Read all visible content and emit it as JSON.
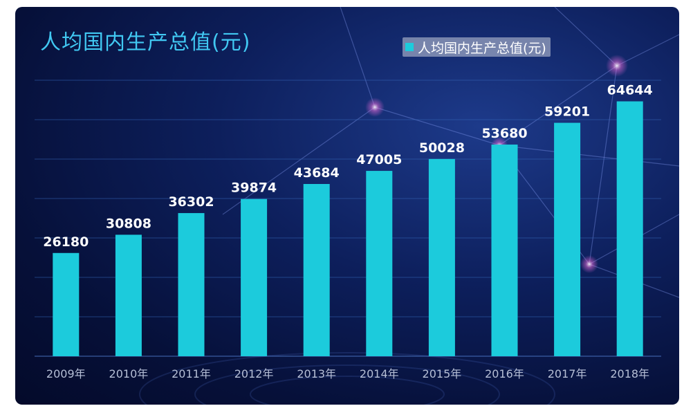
{
  "chart_data": {
    "type": "bar",
    "title": "人均国内生产总值(元)",
    "categories": [
      "2009年",
      "2010年",
      "2011年",
      "2012年",
      "2013年",
      "2014年",
      "2015年",
      "2016年",
      "2017年",
      "2018年"
    ],
    "series": [
      {
        "name": "人均国内生产总值(元)",
        "values": [
          26180,
          30808,
          36302,
          39874,
          43684,
          47005,
          50028,
          53680,
          59201,
          64644
        ],
        "color": "#1ccbdc"
      }
    ],
    "ylim": [
      0,
      70000
    ],
    "grid": true,
    "legend": "top-right",
    "data_labels": true
  }
}
